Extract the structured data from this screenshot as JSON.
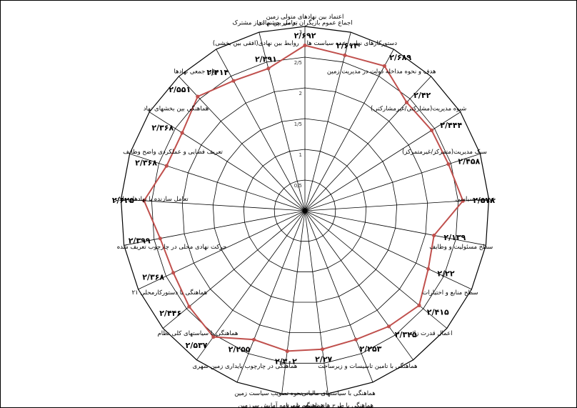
{
  "chart_data": {
    "type": "radar",
    "axis_ticks": [
      "0",
      "0/5",
      "1",
      "1/5",
      "2",
      "2/5",
      "3"
    ],
    "rmax": 3,
    "ring_count": 6,
    "legend": "none",
    "series": [
      {
        "color": "#c0504d",
        "values": [
          2.692,
          2.614,
          2.689,
          2.42,
          2.444,
          2.458,
          2.578,
          2.139,
          2.22,
          2.415,
          2.325,
          2.253,
          2.27,
          2.302,
          2.255,
          2.537,
          2.446,
          2.368,
          2.399,
          2.625,
          2.368,
          2.368,
          2.551,
          2.414,
          2.391
        ],
        "labels": [
          "۲/۶۹۲",
          "۲/۶۱۴",
          "۲/۶۸۹",
          "۲/۴۲",
          "۲/۴۴۴",
          "۲/۴۵۸",
          "۲/۵۷۸",
          "۲/۱۳۹",
          "۲/۲۲",
          "۲/۴۱۵",
          "۲/۳۲۵",
          "۲/۲۵۳",
          "۲/۲۷",
          "۲/۳۰۲",
          "۲/۲۵۵",
          "۲/۵۳۷",
          "۲/۴۴۶",
          "۲/۳۶۸",
          "۲/۳۹۹",
          "۲/۶۲۵",
          "۲/۳۶۸",
          "۲/۳۶۸",
          "۲/۵۵۱",
          "۲/۴۱۴",
          "۲/۳۹۱"
        ]
      }
    ],
    "categories": [
      "اعتماد بین نهادهای متولی زمین",
      "اجماع عموم بازیگران بر سر چشم انداز مشترک",
      "دستورکارهای نهایی شده سیاست ها",
      "هدف و نحوه مداخله دولت در مدیریت زمین",
      "شیوه مدیریت(مشارکتی/غیرمشارکتی)",
      "سبک مدیریت(متمرکز/غیرمتمرکز)",
      "خواست سیاسی",
      "سطح مسئولیت و وظایف",
      "سطح منابع و اختیارات",
      "اعمال قدرت زائد",
      "هماهنگی با تامین تاسیسات و زیرساخت",
      "هماهنگی با سیاستهای مالیاتی",
      "هماهنگی با طرح های توسعه شهری",
      "هماهنگی با برنامه آمایش سرزمین",
      "نحوه تصویب سیاست زمین",
      "هماهنگی در چارچوب پایداری زمین شهری",
      "هماهنگی با سیاستهای کلی نظام",
      "هماهنگی با دستورکارمحلی ۲۱",
      "حرکت نهادی محلی در چارچوب تعریف شده",
      "تعامل سازنده با نهادهای بالاتر",
      "تعریف فضایی و عملکردی واضح وظایف",
      "هماهنگی بین بخشهای نهاد",
      "توان جمعی نهادها",
      "روابط بین نهادی(افقی بین بخشی)",
      "تعامل بین نهادی"
    ]
  }
}
